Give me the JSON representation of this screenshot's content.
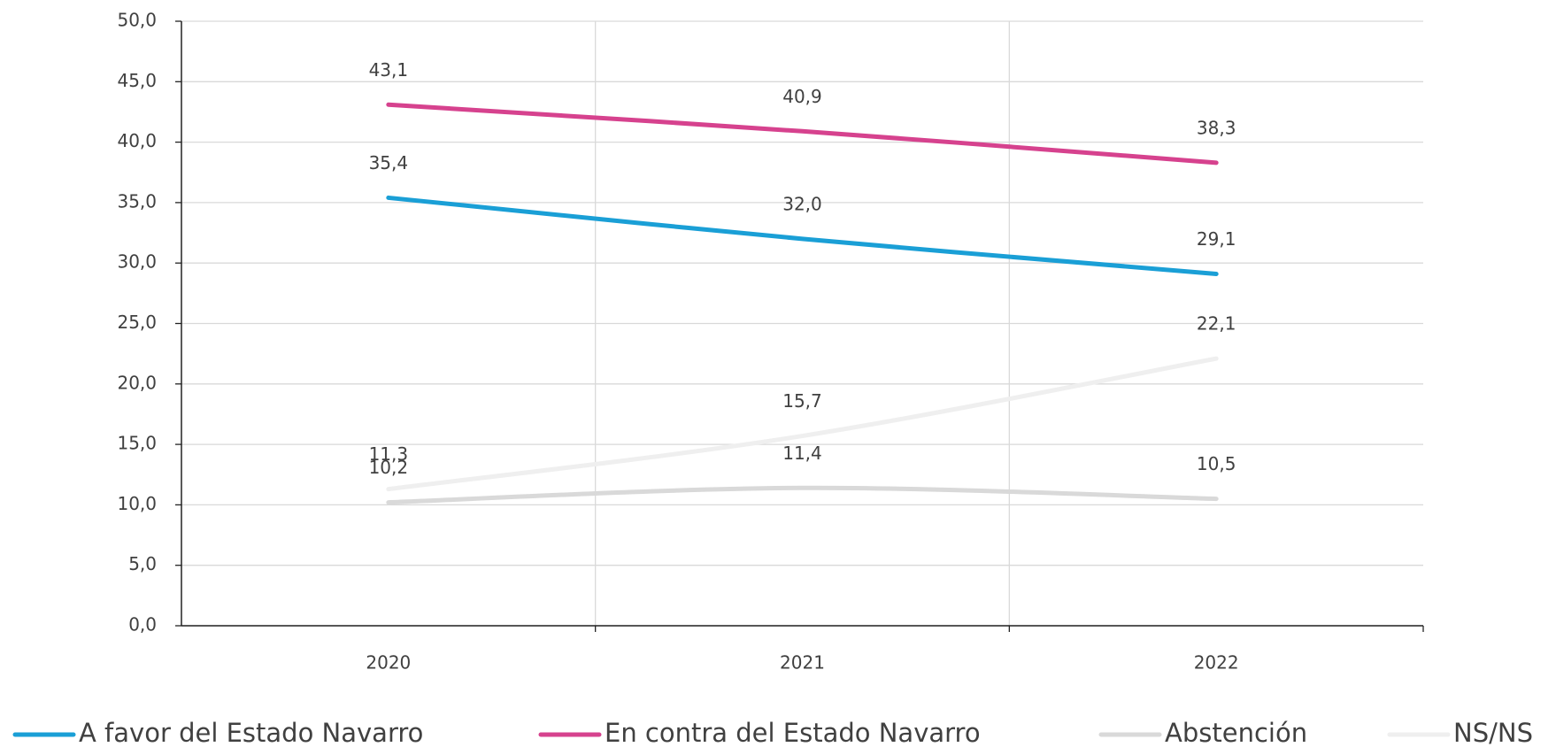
{
  "chart_data": {
    "type": "line",
    "categories": [
      "2020",
      "2021",
      "2022"
    ],
    "series": [
      {
        "name": "A favor del Estado Navarro",
        "color": "#1a9fd6",
        "values": [
          35.4,
          32.0,
          29.1
        ],
        "value_labels": [
          "35,4",
          "32,0",
          "29,1"
        ]
      },
      {
        "name": "En contra del Estado Navarro",
        "color": "#d6428e",
        "values": [
          43.1,
          40.9,
          38.3
        ],
        "value_labels": [
          "43,1",
          "40,9",
          "38,3"
        ]
      },
      {
        "name": "Abstención",
        "color": "#d9d9d9",
        "values": [
          10.2,
          11.4,
          10.5
        ],
        "value_labels": [
          "10,2",
          "11,4",
          "10,5"
        ]
      },
      {
        "name": "NS/NS",
        "color": "#efefef",
        "values": [
          11.3,
          15.7,
          22.1
        ],
        "value_labels": [
          "11,3",
          "15,7",
          "22,1"
        ]
      }
    ],
    "ylim": [
      0,
      50
    ],
    "yticks": [
      {
        "value": 0,
        "label": "0,0"
      },
      {
        "value": 5,
        "label": "5,0"
      },
      {
        "value": 10,
        "label": "10,0"
      },
      {
        "value": 15,
        "label": "15,0"
      },
      {
        "value": 20,
        "label": "20,0"
      },
      {
        "value": 25,
        "label": "25,0"
      },
      {
        "value": 30,
        "label": "30,0"
      },
      {
        "value": 35,
        "label": "35,0"
      },
      {
        "value": 40,
        "label": "40,0"
      },
      {
        "value": 45,
        "label": "45,0"
      },
      {
        "value": 50,
        "label": "50,0"
      }
    ],
    "grid": true
  }
}
